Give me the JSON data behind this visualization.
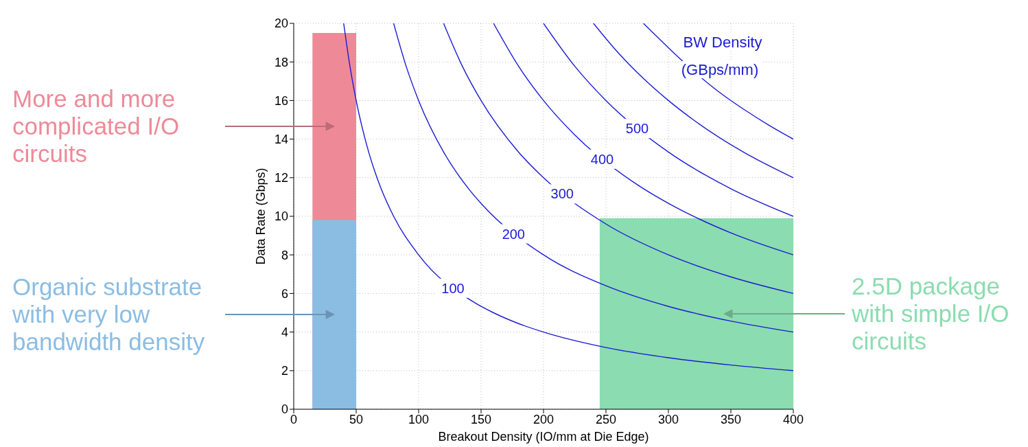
{
  "chart_data": {
    "type": "line",
    "xlabel": "Breakout Density (IO/mm at Die Edge)",
    "ylabel": "Data Rate (Gbps)",
    "legend_title": "BW Density (GBps/mm)",
    "xlim": [
      0,
      400
    ],
    "ylim": [
      0,
      20
    ],
    "xticks": [
      0,
      50,
      100,
      150,
      200,
      250,
      300,
      350,
      400
    ],
    "yticks": [
      0,
      2,
      4,
      6,
      8,
      10,
      12,
      14,
      16,
      18,
      20
    ],
    "grid": true,
    "marker": "none",
    "line_style": "solid",
    "series": [
      {
        "type": "area",
        "name": "More and more complicated I/O circuits",
        "color": "#ee8a98",
        "x": [
          15,
          50
        ],
        "values": [
          19.5,
          19.5
        ]
      },
      {
        "type": "area",
        "name": "Organic substrate with very low bandwidth density",
        "color": "#8bbde3",
        "x": [
          15,
          50
        ],
        "values": [
          9.8,
          9.8
        ]
      },
      {
        "type": "area",
        "name": "2.5D package with simple I/O circuits",
        "color": "#8bdcb0",
        "x": [
          245,
          400
        ],
        "values": [
          9.9,
          9.9
        ]
      },
      {
        "color": "#1a1ad6",
        "x": [
          40,
          45,
          50,
          60,
          70,
          80,
          100,
          145,
          160,
          180,
          200,
          250,
          300,
          350,
          400
        ],
        "values": [
          20,
          17.78,
          16,
          13.33,
          11.43,
          10,
          8,
          5.52,
          5,
          4.44,
          4,
          3.2,
          2.67,
          2.29,
          2
        ]
      },
      {
        "color": "#1a1ad6",
        "x": [
          80,
          90,
          100,
          120,
          140,
          150,
          200,
          250,
          300,
          350,
          400
        ],
        "values": [
          20,
          17.78,
          16,
          13.33,
          11.43,
          10.67,
          8,
          6.4,
          5.33,
          4.57,
          4
        ]
      },
      {
        "color": "#1a1ad6",
        "x": [
          120,
          135,
          150,
          180,
          200,
          250,
          300,
          350,
          400
        ],
        "values": [
          20,
          17.78,
          16,
          13.33,
          12,
          9.6,
          8,
          6.86,
          6
        ]
      },
      {
        "color": "#1a1ad6",
        "x": [
          160,
          180,
          200,
          225,
          275,
          300,
          350,
          400
        ],
        "values": [
          20,
          17.78,
          16,
          14.22,
          11.64,
          10.67,
          9.14,
          8
        ]
      },
      {
        "color": "#1a1ad6",
        "x": [
          200,
          225,
          250,
          300,
          350,
          400
        ],
        "values": [
          20,
          17.78,
          16,
          13.33,
          11.43,
          10
        ]
      },
      {
        "color": "#1a1ad6",
        "x": [
          240,
          260,
          280,
          300,
          320,
          360,
          400
        ],
        "values": [
          20,
          18.46,
          17.14,
          16,
          15,
          13.33,
          12
        ]
      },
      {
        "color": "#1a1ad6",
        "x": [
          280,
          340,
          360,
          380,
          400
        ],
        "values": [
          20,
          16.47,
          15.56,
          14.74,
          14
        ]
      }
    ],
    "annotations": [
      {
        "text": "100",
        "x": 127.5,
        "y": 6.27
      },
      {
        "text": "200",
        "x": 176,
        "y": 9.09
      },
      {
        "text": "300",
        "x": 215,
        "y": 11.16
      },
      {
        "text": "400",
        "x": 247,
        "y": 12.96
      },
      {
        "text": "500",
        "x": 275,
        "y": 14.55
      }
    ]
  }
}
